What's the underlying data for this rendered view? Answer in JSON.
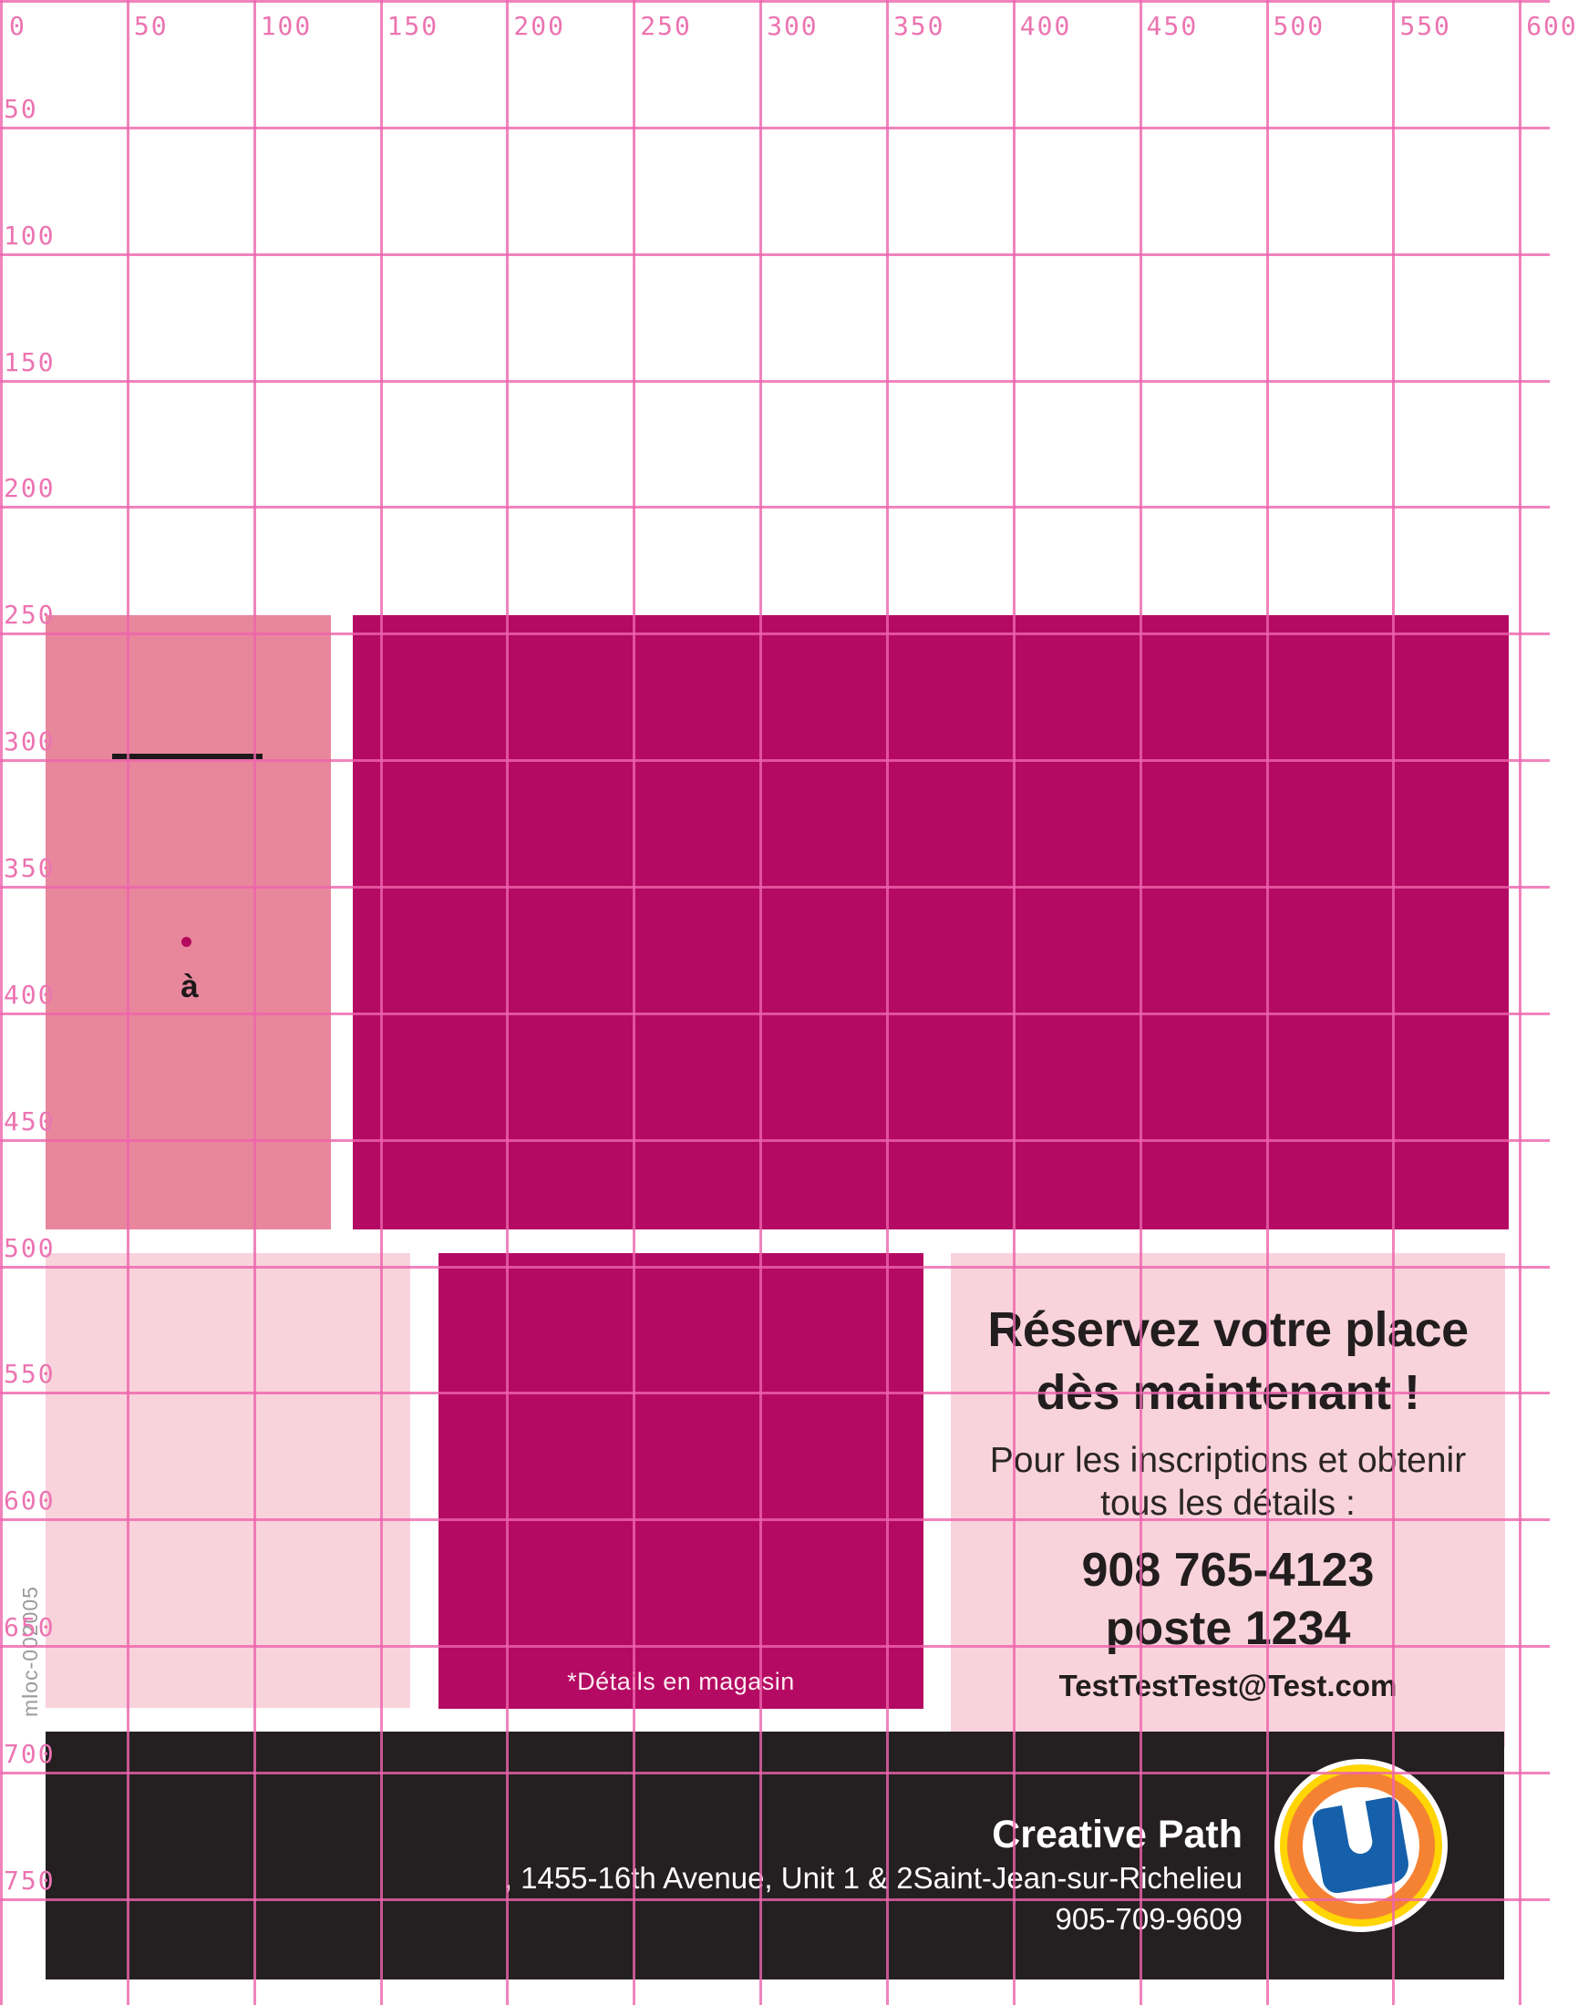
{
  "ruler": {
    "top_labels": [
      "0",
      "50",
      "100",
      "150",
      "200",
      "250",
      "300",
      "350",
      "400",
      "450",
      "500",
      "550",
      "600"
    ],
    "left_labels": [
      "50",
      "100",
      "150",
      "200",
      "250",
      "300",
      "350",
      "400",
      "450",
      "500",
      "550",
      "600",
      "650",
      "700",
      "750"
    ],
    "grid_color": "#ed64ac",
    "label_color": "#ec74b1"
  },
  "artboard": {
    "side_code": "mloc-002005",
    "rose_block": {
      "accent_char": "à"
    },
    "details_note": "*Détails en magasin"
  },
  "promo": {
    "headline_line1": "Réservez votre place",
    "headline_line2": "dès maintenant !",
    "sub_line1": "Pour les inscriptions et obtenir",
    "sub_line2": "tous les détails :",
    "phone": "908 765-4123",
    "extension": "poste 1234",
    "email": "TestTestTest@Test.com"
  },
  "footer": {
    "company": "Creative Path",
    "address": ", 1455-16th Avenue, Unit 1 & 2Saint-Jean-sur-Richelieu",
    "phone": "905-709-9609",
    "logo_letter_semantic": "U"
  },
  "colors": {
    "rose": "#e8879c",
    "magenta": "#b40a63",
    "light_pink": "#f9d3dc",
    "footer_black": "#241f21",
    "logo_blue": "#1660ab",
    "logo_orange": "#f58233",
    "logo_yellow": "#ffd503"
  }
}
